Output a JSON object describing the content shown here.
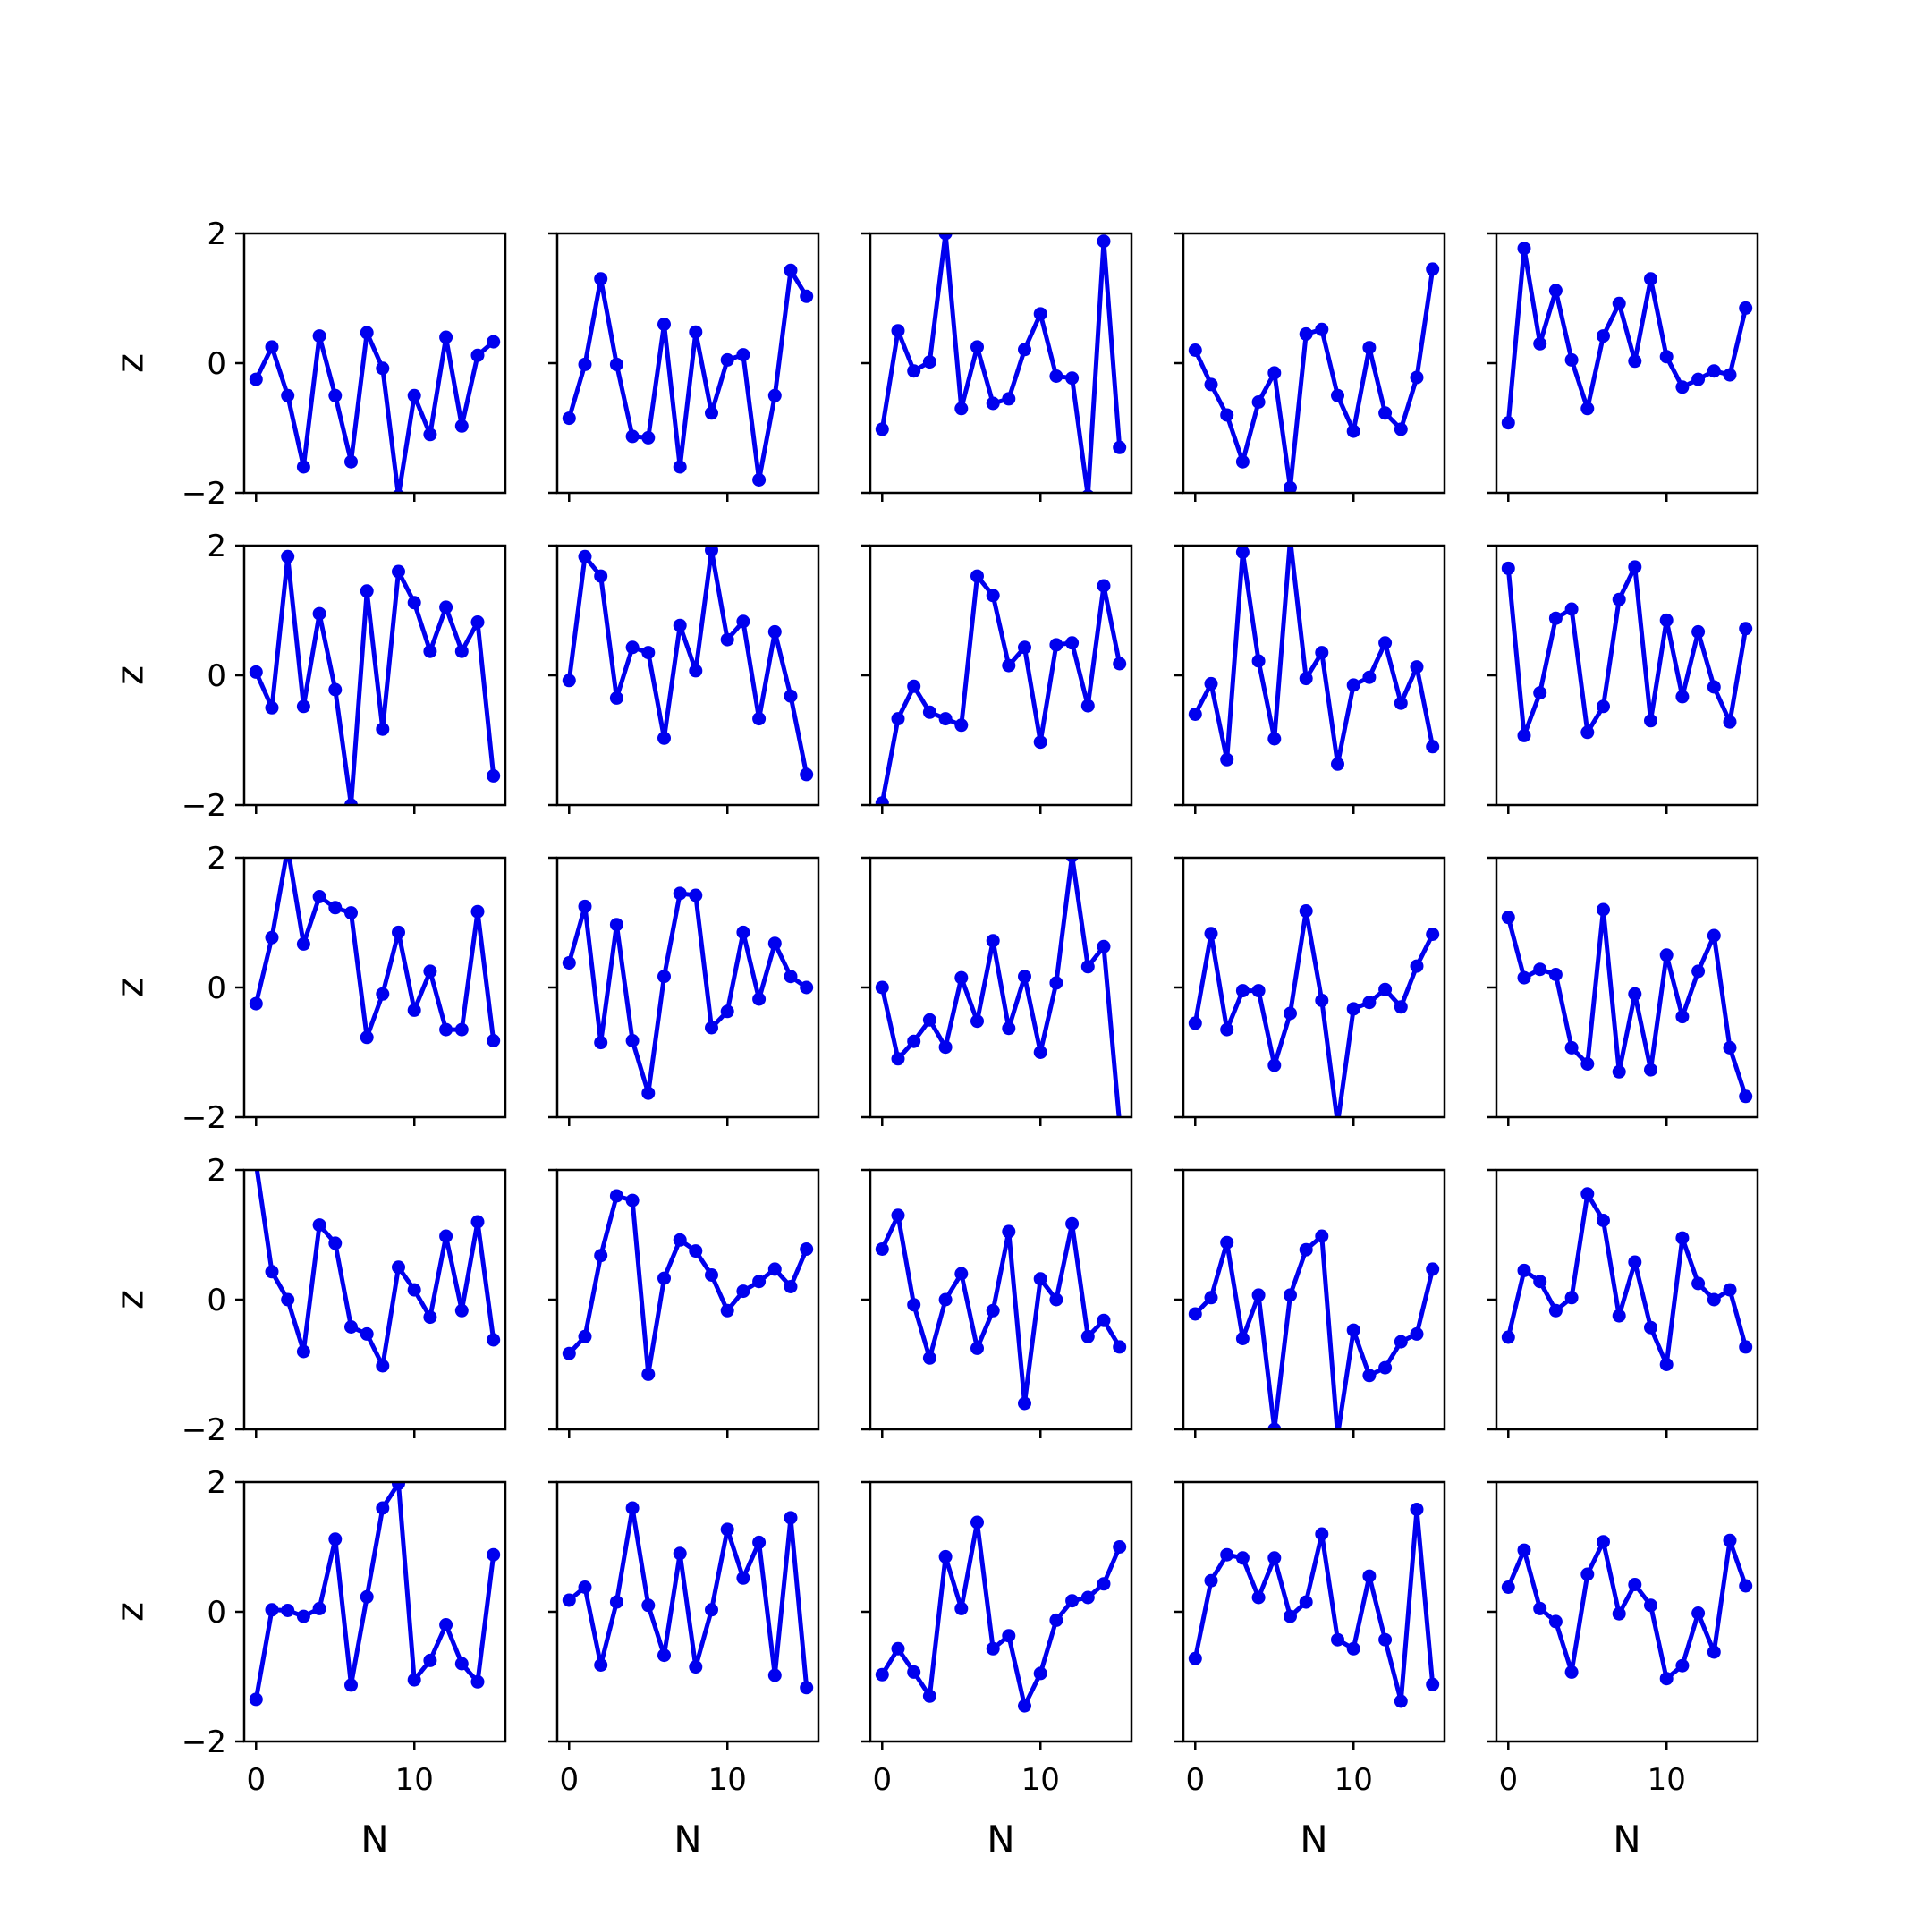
{
  "chart_data": {
    "type": "line",
    "layout": {
      "rows": 5,
      "cols": 5
    },
    "xlabel": "N",
    "ylabel": "z",
    "xlim": [
      -0.75,
      15.75
    ],
    "ylim": [
      -2,
      2
    ],
    "xticks": [
      0,
      10
    ],
    "yticks": [
      -2,
      0,
      2
    ],
    "xtick_labels": [
      "0",
      "10"
    ],
    "ytick_labels": [
      "−2",
      "0",
      "2"
    ],
    "color": "#0000ee",
    "x": [
      0,
      1,
      2,
      3,
      4,
      5,
      6,
      7,
      8,
      9,
      10,
      11,
      12,
      13,
      14,
      15
    ],
    "panels": [
      {
        "values": [
          -0.25,
          0.25,
          -0.5,
          -1.6,
          0.42,
          -0.5,
          -1.52,
          0.47,
          -0.08,
          -2.05,
          -0.5,
          -1.1,
          0.4,
          -0.97,
          0.12,
          0.33
        ]
      },
      {
        "values": [
          -0.85,
          -0.02,
          1.3,
          -0.02,
          -1.13,
          -1.15,
          0.6,
          -1.6,
          0.48,
          -0.77,
          0.05,
          0.13,
          -1.8,
          -0.5,
          1.43,
          1.03
        ]
      },
      {
        "values": [
          -1.02,
          0.5,
          -0.12,
          0.02,
          2.0,
          -0.7,
          0.25,
          -0.62,
          -0.55,
          0.21,
          0.76,
          -0.2,
          -0.23,
          -2.05,
          1.88,
          -1.3
        ]
      },
      {
        "values": [
          0.2,
          -0.33,
          -0.8,
          -1.52,
          -0.6,
          -0.15,
          -1.92,
          0.45,
          0.52,
          -0.5,
          -1.05,
          0.24,
          -0.77,
          -1.02,
          -0.22,
          1.45
        ]
      },
      {
        "values": [
          -0.92,
          1.77,
          0.3,
          1.12,
          0.05,
          -0.7,
          0.42,
          0.92,
          0.03,
          1.3,
          0.1,
          -0.37,
          -0.25,
          -0.12,
          -0.18,
          0.85
        ]
      },
      {
        "values": [
          0.05,
          -0.5,
          1.83,
          -0.48,
          0.95,
          -0.22,
          -2.0,
          1.3,
          -0.83,
          1.6,
          1.12,
          0.37,
          1.05,
          0.37,
          0.82,
          -1.55
        ]
      },
      {
        "values": [
          -0.08,
          1.83,
          1.53,
          -0.35,
          0.43,
          0.35,
          -0.97,
          0.77,
          0.07,
          1.93,
          0.55,
          0.83,
          -0.67,
          0.67,
          -0.32,
          -1.53
        ]
      },
      {
        "values": [
          -1.97,
          -0.67,
          -0.17,
          -0.57,
          -0.67,
          -0.77,
          1.53,
          1.23,
          0.15,
          0.43,
          -1.03,
          0.47,
          0.5,
          -0.47,
          1.38,
          0.18
        ]
      },
      {
        "values": [
          -0.6,
          -0.13,
          -1.3,
          1.9,
          0.22,
          -0.98,
          2.1,
          -0.05,
          0.35,
          -1.37,
          -0.15,
          -0.03,
          0.5,
          -0.43,
          0.13,
          -1.1
        ]
      },
      {
        "values": [
          1.65,
          -0.93,
          -0.27,
          0.88,
          1.02,
          -0.88,
          -0.48,
          1.17,
          1.67,
          -0.7,
          0.85,
          -0.33,
          0.67,
          -0.18,
          -0.72,
          0.72
        ]
      },
      {
        "values": [
          -0.25,
          0.77,
          2.15,
          0.67,
          1.4,
          1.23,
          1.15,
          -0.77,
          -0.1,
          0.85,
          -0.35,
          0.25,
          -0.65,
          -0.65,
          1.17,
          -0.82
        ]
      },
      {
        "values": [
          0.38,
          1.25,
          -0.85,
          0.97,
          -0.82,
          -1.63,
          0.17,
          1.45,
          1.42,
          -0.62,
          -0.37,
          0.85,
          -0.18,
          0.68,
          0.17,
          0.0
        ]
      },
      {
        "values": [
          0.0,
          -1.1,
          -0.83,
          -0.5,
          -0.92,
          0.15,
          -0.52,
          0.72,
          -0.63,
          0.17,
          -1.0,
          0.07,
          2.03,
          0.32,
          0.63,
          -2.1
        ]
      },
      {
        "values": [
          -0.55,
          0.83,
          -0.65,
          -0.05,
          -0.05,
          -1.2,
          -0.4,
          1.18,
          -0.2,
          -2.1,
          -0.33,
          -0.23,
          -0.03,
          -0.3,
          0.33,
          0.82
        ]
      },
      {
        "values": [
          1.08,
          0.15,
          0.28,
          0.2,
          -0.93,
          -1.18,
          1.2,
          -1.3,
          -0.1,
          -1.27,
          0.5,
          -0.45,
          0.25,
          0.8,
          -0.93,
          -1.68
        ]
      },
      {
        "values": [
          2.1,
          0.43,
          0.0,
          -0.8,
          1.15,
          0.87,
          -0.42,
          -0.53,
          -1.02,
          0.5,
          0.15,
          -0.27,
          0.98,
          -0.17,
          1.2,
          -0.62
        ]
      },
      {
        "values": [
          -0.83,
          -0.57,
          0.68,
          1.6,
          1.53,
          -1.15,
          0.33,
          0.92,
          0.75,
          0.38,
          -0.17,
          0.13,
          0.28,
          0.47,
          0.2,
          0.78
        ]
      },
      {
        "values": [
          0.78,
          1.3,
          -0.08,
          -0.9,
          0.0,
          0.4,
          -0.75,
          -0.17,
          1.05,
          -1.6,
          0.32,
          0.0,
          1.17,
          -0.57,
          -0.32,
          -0.73
        ]
      },
      {
        "values": [
          -0.22,
          0.03,
          0.88,
          -0.6,
          0.07,
          -2.0,
          0.07,
          0.77,
          0.98,
          -2.1,
          -0.47,
          -1.17,
          -1.05,
          -0.65,
          -0.53,
          0.47
        ]
      },
      {
        "values": [
          -0.58,
          0.45,
          0.28,
          -0.17,
          0.03,
          1.63,
          1.22,
          -0.25,
          0.58,
          -0.43,
          -1.0,
          0.95,
          0.25,
          0.0,
          0.15,
          -0.73
        ]
      },
      {
        "values": [
          -1.35,
          0.03,
          0.02,
          -0.07,
          0.05,
          1.12,
          -1.13,
          0.23,
          1.6,
          1.98,
          -1.05,
          -0.75,
          -0.2,
          -0.8,
          -1.08,
          0.88
        ]
      },
      {
        "values": [
          0.18,
          0.38,
          -0.82,
          0.15,
          1.6,
          0.1,
          -0.67,
          0.9,
          -0.85,
          0.03,
          1.27,
          0.52,
          1.07,
          -0.98,
          1.45,
          -1.17
        ]
      },
      {
        "values": [
          -0.97,
          -0.57,
          -0.93,
          -1.3,
          0.85,
          0.05,
          1.38,
          -0.57,
          -0.37,
          -1.45,
          -0.95,
          -0.13,
          0.17,
          0.22,
          0.43,
          1.0
        ]
      },
      {
        "values": [
          -0.72,
          0.48,
          0.88,
          0.83,
          0.22,
          0.83,
          -0.07,
          0.15,
          1.2,
          -0.43,
          -0.57,
          0.55,
          -0.43,
          -1.38,
          1.58,
          -1.12
        ]
      },
      {
        "values": [
          0.38,
          0.95,
          0.05,
          -0.15,
          -0.93,
          0.58,
          1.08,
          -0.03,
          0.42,
          0.1,
          -1.03,
          -0.83,
          -0.02,
          -0.62,
          1.1,
          0.4
        ]
      }
    ]
  }
}
